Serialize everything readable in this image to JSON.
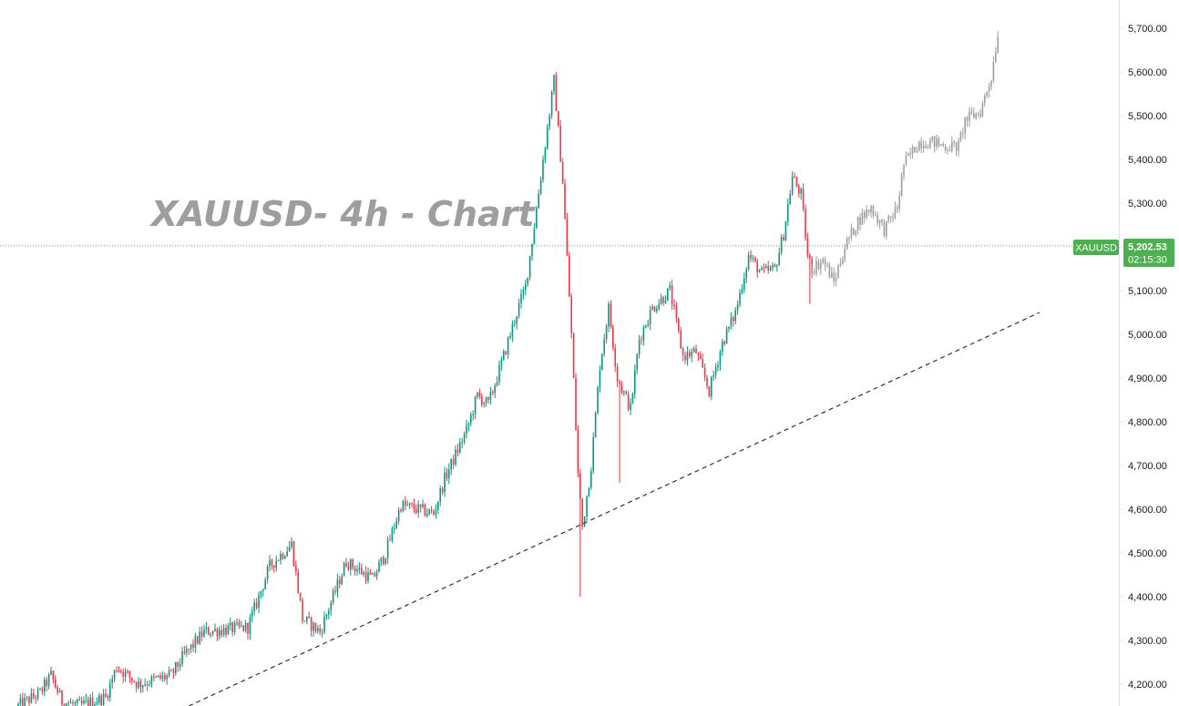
{
  "colors": {
    "up": "#089981",
    "down": "#f23645",
    "projection": "#9e9e9e",
    "price_line": "#4caf50",
    "badge": "#4caf50",
    "trendline": "#333333",
    "axis_border": "#e0e3eb",
    "title": "#9e9e9e"
  },
  "chart_data": {
    "type": "candlestick",
    "title": "XAUUSD- 4h - Chart",
    "symbol": "XAUUSD",
    "timeframe": "4h",
    "y_axis": {
      "position": "right",
      "ylim": [
        4150,
        5765
      ],
      "ticks": [
        {
          "value": 4200,
          "label": "4,200.00"
        },
        {
          "value": 4300,
          "label": "4,300.00"
        },
        {
          "value": 4400,
          "label": "4,400.00"
        },
        {
          "value": 4500,
          "label": "4,500.00"
        },
        {
          "value": 4600,
          "label": "4,600.00"
        },
        {
          "value": 4700,
          "label": "4,700.00"
        },
        {
          "value": 4800,
          "label": "4,800.00"
        },
        {
          "value": 4900,
          "label": "4,900.00"
        },
        {
          "value": 5000,
          "label": "5,000.00"
        },
        {
          "value": 5100,
          "label": "5,100.00"
        },
        {
          "value": 5200,
          "label": "5,200.00"
        },
        {
          "value": 5300,
          "label": "5,300.00"
        },
        {
          "value": 5400,
          "label": "5,400.00"
        },
        {
          "value": 5500,
          "label": "5,500.00"
        },
        {
          "value": 5600,
          "label": "5,600.00"
        },
        {
          "value": 5700,
          "label": "5,700.00"
        }
      ]
    },
    "current_price": {
      "symbol": "XAUUSD",
      "value": 5202.53,
      "label": "5,202.53",
      "countdown": "02:15:30"
    },
    "price_path": [
      {
        "bar": 0,
        "close": 4150
      },
      {
        "bar": 10,
        "close": 4180
      },
      {
        "bar": 15,
        "close": 4220
      },
      {
        "bar": 20,
        "close": 4160
      },
      {
        "bar": 28,
        "close": 4150
      },
      {
        "bar": 40,
        "close": 4170
      },
      {
        "bar": 45,
        "close": 4240
      },
      {
        "bar": 55,
        "close": 4200
      },
      {
        "bar": 70,
        "close": 4220
      },
      {
        "bar": 75,
        "close": 4260
      },
      {
        "bar": 85,
        "close": 4320
      },
      {
        "bar": 105,
        "close": 4330
      },
      {
        "bar": 115,
        "close": 4470
      },
      {
        "bar": 125,
        "close": 4520
      },
      {
        "bar": 130,
        "close": 4350
      },
      {
        "bar": 138,
        "close": 4320
      },
      {
        "bar": 150,
        "close": 4480
      },
      {
        "bar": 162,
        "close": 4440
      },
      {
        "bar": 168,
        "close": 4500
      },
      {
        "bar": 175,
        "close": 4610
      },
      {
        "bar": 190,
        "close": 4590
      },
      {
        "bar": 195,
        "close": 4670
      },
      {
        "bar": 205,
        "close": 4780
      },
      {
        "bar": 210,
        "close": 4860
      },
      {
        "bar": 215,
        "close": 4840
      },
      {
        "bar": 222,
        "close": 4950
      },
      {
        "bar": 228,
        "close": 5050
      },
      {
        "bar": 232,
        "close": 5110
      },
      {
        "bar": 236,
        "close": 5250
      },
      {
        "bar": 240,
        "close": 5400
      },
      {
        "bar": 245,
        "close": 5580
      },
      {
        "bar": 249,
        "close": 5350
      },
      {
        "bar": 253,
        "close": 5000
      },
      {
        "bar": 256,
        "close": 4680
      },
      {
        "bar": 258,
        "close": 4560
      },
      {
        "bar": 262,
        "close": 4700
      },
      {
        "bar": 266,
        "close": 4930
      },
      {
        "bar": 270,
        "close": 5060
      },
      {
        "bar": 274,
        "close": 4900
      },
      {
        "bar": 280,
        "close": 4830
      },
      {
        "bar": 284,
        "close": 4990
      },
      {
        "bar": 290,
        "close": 5060
      },
      {
        "bar": 298,
        "close": 5100
      },
      {
        "bar": 304,
        "close": 4950
      },
      {
        "bar": 310,
        "close": 4960
      },
      {
        "bar": 316,
        "close": 4870
      },
      {
        "bar": 322,
        "close": 4980
      },
      {
        "bar": 328,
        "close": 5050
      },
      {
        "bar": 334,
        "close": 5180
      },
      {
        "bar": 340,
        "close": 5140
      },
      {
        "bar": 346,
        "close": 5150
      },
      {
        "bar": 350,
        "close": 5230
      },
      {
        "bar": 354,
        "close": 5360
      },
      {
        "bar": 358,
        "close": 5320
      },
      {
        "bar": 361,
        "close": 5180
      },
      {
        "bar": 363,
        "close": 5150
      }
    ],
    "projection_path": [
      {
        "bar": 363,
        "close": 5150
      },
      {
        "bar": 368,
        "close": 5170
      },
      {
        "bar": 373,
        "close": 5120
      },
      {
        "bar": 378,
        "close": 5200
      },
      {
        "bar": 384,
        "close": 5260
      },
      {
        "bar": 390,
        "close": 5290
      },
      {
        "bar": 396,
        "close": 5240
      },
      {
        "bar": 402,
        "close": 5290
      },
      {
        "bar": 405,
        "close": 5390
      },
      {
        "bar": 412,
        "close": 5440
      },
      {
        "bar": 418,
        "close": 5440
      },
      {
        "bar": 424,
        "close": 5430
      },
      {
        "bar": 430,
        "close": 5430
      },
      {
        "bar": 433,
        "close": 5490
      },
      {
        "bar": 440,
        "close": 5510
      },
      {
        "bar": 445,
        "close": 5590
      },
      {
        "bar": 448,
        "close": 5690
      }
    ],
    "extremes": [
      {
        "bar": 245,
        "high": 5595
      },
      {
        "bar": 257,
        "low": 4400
      },
      {
        "bar": 275,
        "low": 4660
      },
      {
        "bar": 362,
        "low": 5070
      }
    ],
    "trendline": {
      "style": "dashed",
      "start": {
        "bar": 78,
        "value": 4150
      },
      "end": {
        "bar": 467,
        "value": 5050
      }
    }
  }
}
